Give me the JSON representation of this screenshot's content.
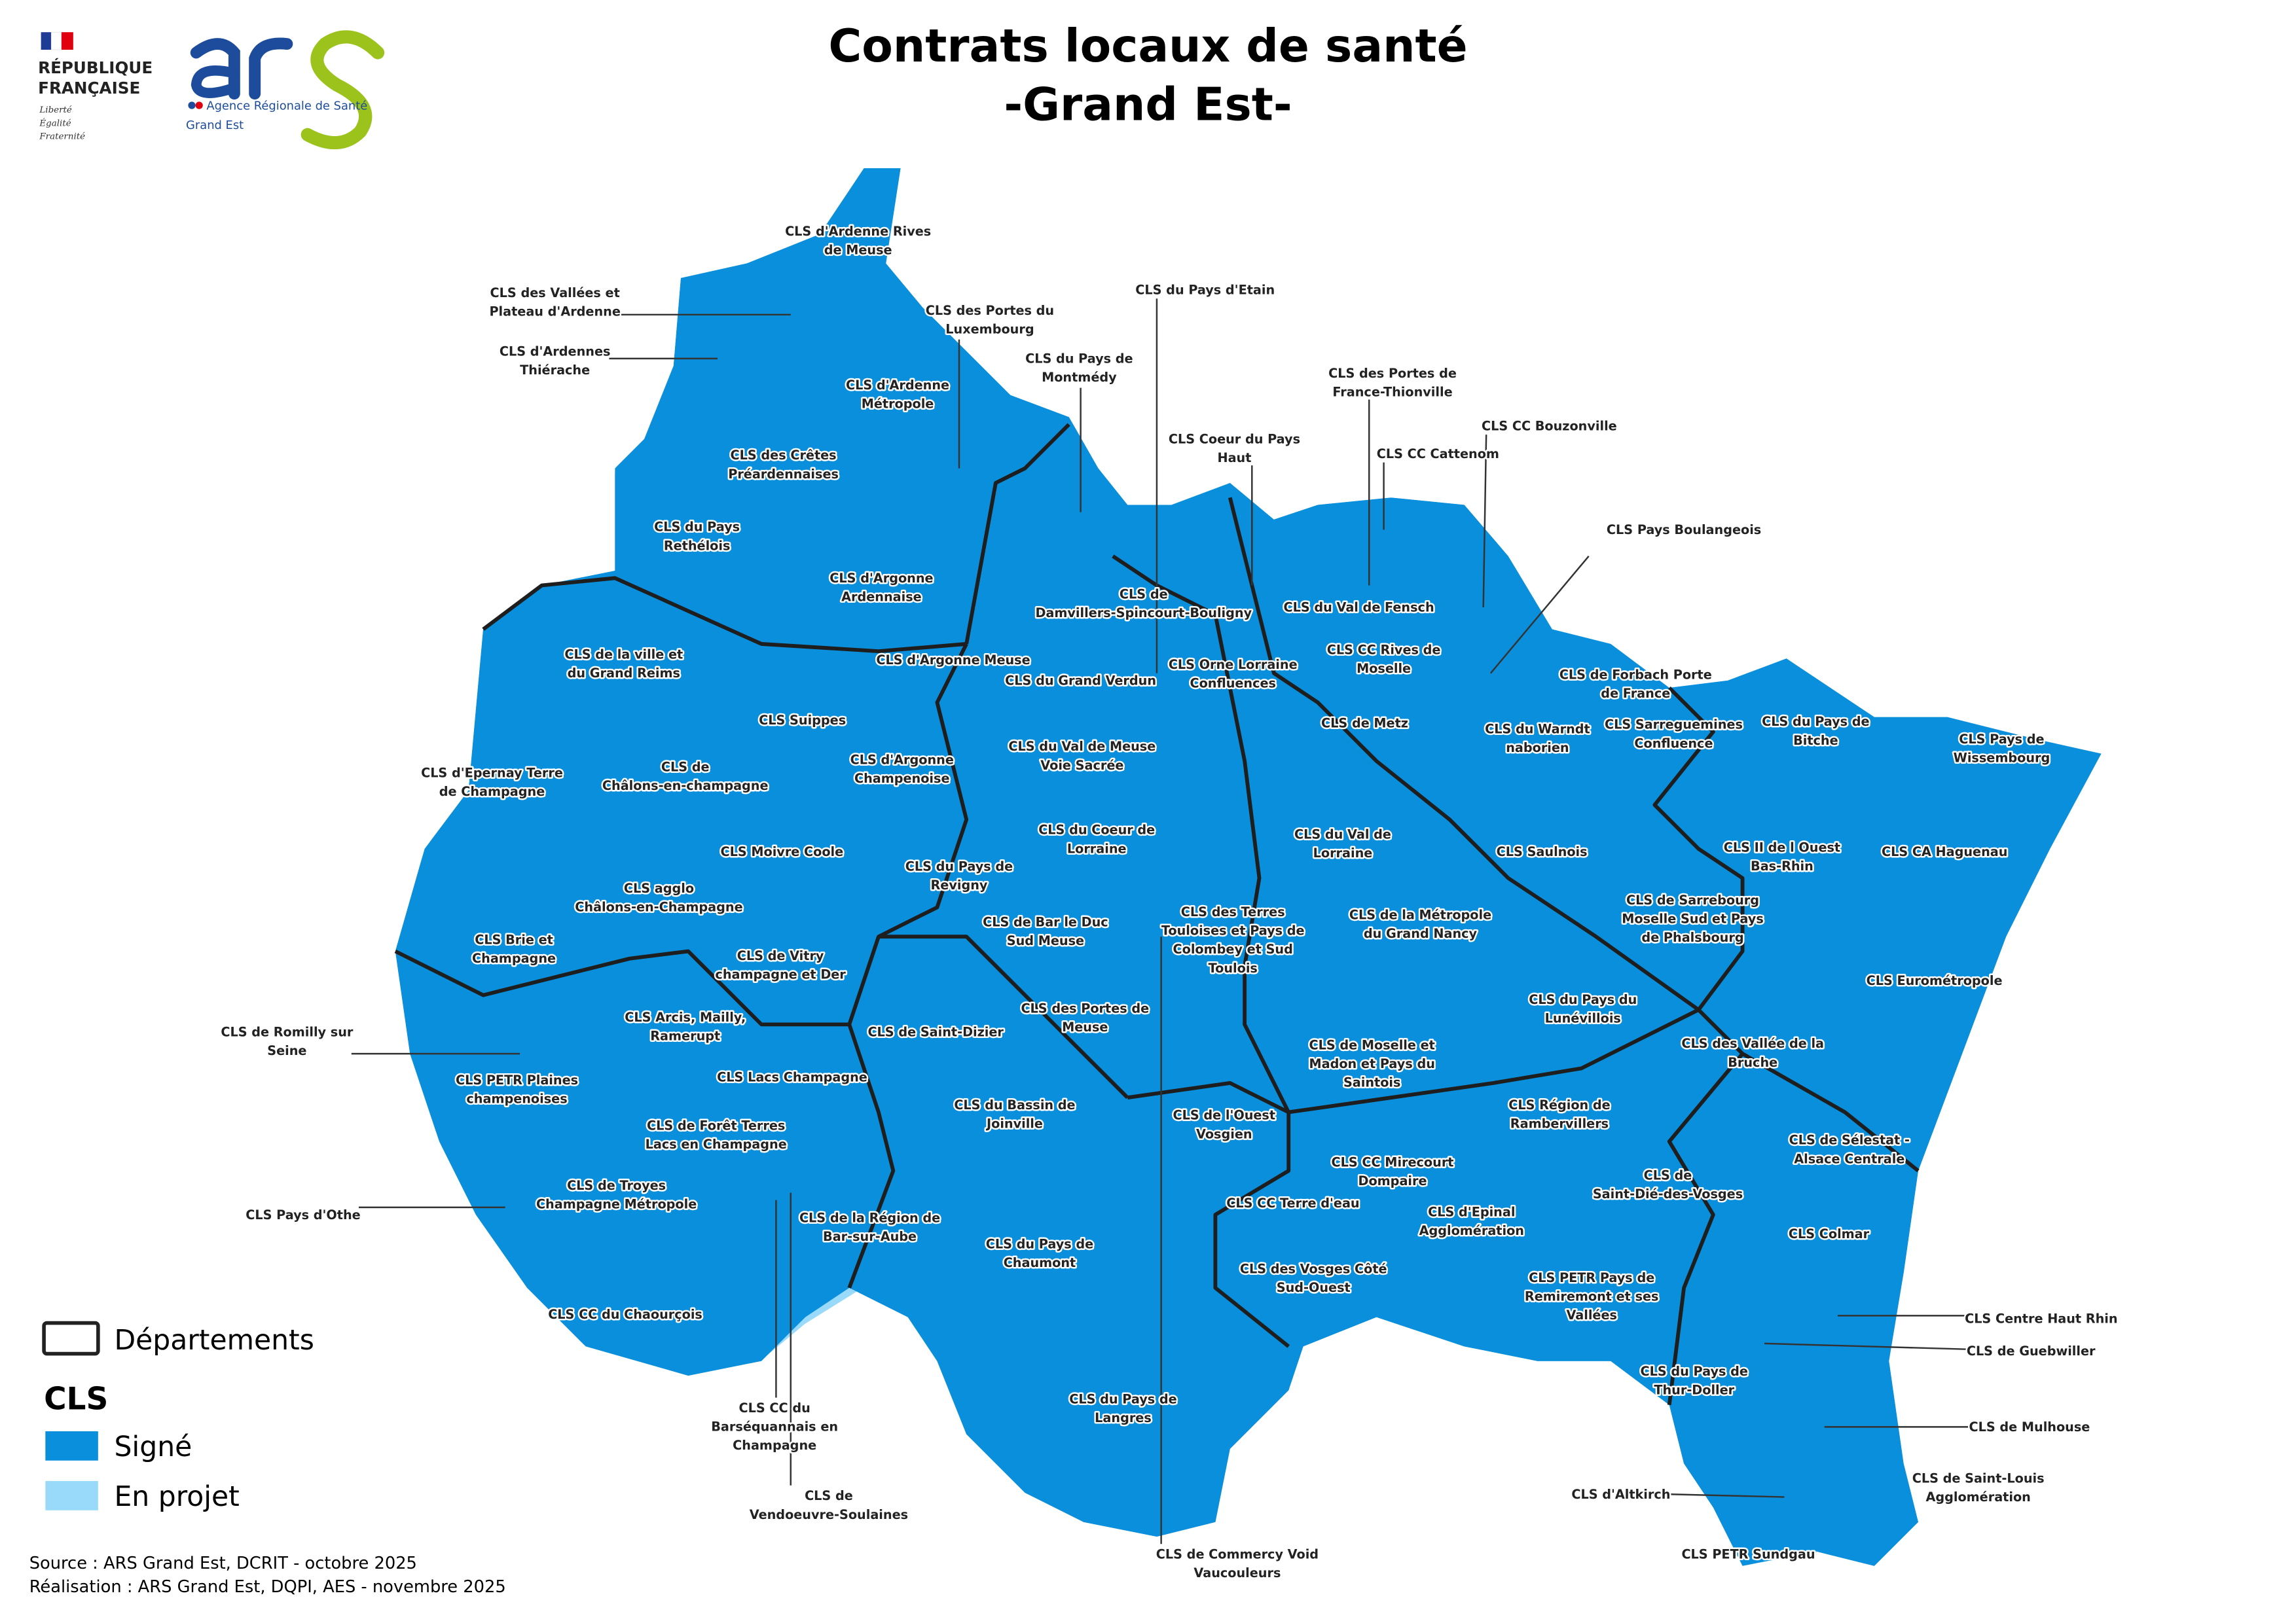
{
  "header": {
    "title_line1": "Contrats locaux de santé",
    "title_line2": "-Grand Est-",
    "logo_rf": {
      "line1": "RÉPUBLIQUE",
      "line2": "FRANÇAISE",
      "motto": [
        "Liberté",
        "Égalité",
        "Fraternité"
      ]
    },
    "logo_ars": {
      "mark": "ars",
      "line1": "Agence Régionale de Santé",
      "line2": "Grand Est"
    }
  },
  "legend": {
    "departments_label": "Départements",
    "cls_title": "CLS",
    "items": [
      {
        "label": "Signé",
        "color": "#0a8fdc"
      },
      {
        "label": "En projet",
        "color": "#99dafa"
      }
    ]
  },
  "colors": {
    "signe": "#0a8fdc",
    "en_projet": "#99dafa",
    "none": "#ffffff",
    "department_border": "#1e1e1e"
  },
  "footer": {
    "source": "Source : ARS Grand Est, DCRIT - octobre 2025",
    "realisation": "Réalisation : ARS Grand Est, DQPI, AES - novembre 2025"
  },
  "labels": [
    {
      "lines": [
        "CLS d'Ardenne Rives",
        "de Meuse"
      ]
    },
    {
      "lines": [
        "CLS des Vallées et",
        "Plateau d'Ardenne"
      ]
    },
    {
      "lines": [
        "CLS d'Ardennes",
        "Thiérache"
      ]
    },
    {
      "lines": [
        "CLS des Portes du",
        "Luxembourg"
      ]
    },
    {
      "lines": [
        "CLS du Pays de",
        "Montmédy"
      ]
    },
    {
      "lines": [
        "CLS du Pays d'Etain"
      ]
    },
    {
      "lines": [
        "CLS d'Ardenne",
        "Métropole"
      ]
    },
    {
      "lines": [
        "CLS des Crêtes",
        "Préardennaises"
      ]
    },
    {
      "lines": [
        "CLS du Pays",
        "Rethélois"
      ]
    },
    {
      "lines": [
        "CLS d'Argonne",
        "Ardennaise"
      ]
    },
    {
      "lines": [
        "CLS de la ville et",
        "du Grand Reims"
      ]
    },
    {
      "lines": [
        "CLS d'Argonne Meuse"
      ]
    },
    {
      "lines": [
        "CLS Suippes"
      ]
    },
    {
      "lines": [
        "CLS d'Argonne",
        "Champenoise"
      ]
    },
    {
      "lines": [
        "CLS d'Epernay Terre",
        "de Champagne"
      ]
    },
    {
      "lines": [
        "CLS de",
        "Châlons-en-champagne"
      ]
    },
    {
      "lines": [
        "CLS Moivre Coole"
      ]
    },
    {
      "lines": [
        "CLS agglo",
        "Châlons-en-Champagne"
      ]
    },
    {
      "lines": [
        "CLS Brie et",
        "Champagne"
      ]
    },
    {
      "lines": [
        "CLS de Vitry",
        "champagne et Der"
      ]
    },
    {
      "lines": [
        "CLS Arcis, Mailly,",
        "Ramerupt"
      ]
    },
    {
      "lines": [
        "CLS de Romilly sur",
        "Seine"
      ]
    },
    {
      "lines": [
        "CLS PETR Plaines",
        "champenoises"
      ]
    },
    {
      "lines": [
        "CLS Lacs Champagne"
      ]
    },
    {
      "lines": [
        "CLS de Forêt Terres",
        "Lacs en Champagne"
      ]
    },
    {
      "lines": [
        "CLS de Troyes",
        "Champagne Métropole"
      ]
    },
    {
      "lines": [
        "CLS Pays d'Othe"
      ]
    },
    {
      "lines": [
        "CLS de la Région de",
        "Bar-sur-Aube"
      ]
    },
    {
      "lines": [
        "CLS CC du Chaourçois"
      ]
    },
    {
      "lines": [
        "CLS CC du",
        "Barséquannais en",
        "Champagne"
      ]
    },
    {
      "lines": [
        "CLS de",
        "Vendoeuvre-Soulaines"
      ]
    },
    {
      "lines": [
        "CLS de Saint-Dizier"
      ]
    },
    {
      "lines": [
        "CLS du Bassin de",
        "Joinville"
      ]
    },
    {
      "lines": [
        "CLS du Pays de",
        "Chaumont"
      ]
    },
    {
      "lines": [
        "CLS du Pays de",
        "Langres"
      ]
    },
    {
      "lines": [
        "CLS de Commercy Void",
        "Vaucouleurs"
      ]
    },
    {
      "lines": [
        "CLS des Portes de",
        "Meuse"
      ]
    },
    {
      "lines": [
        "CLS de Bar le Duc",
        "Sud Meuse"
      ]
    },
    {
      "lines": [
        "CLS du Pays de",
        "Revigny"
      ]
    },
    {
      "lines": [
        "CLS du Coeur de",
        "Lorraine"
      ]
    },
    {
      "lines": [
        "CLS du Val de Meuse",
        "Voie Sacrée"
      ]
    },
    {
      "lines": [
        "CLS du Grand Verdun"
      ]
    },
    {
      "lines": [
        "CLS de",
        "Damvillers-Spincourt-Bouligny"
      ]
    },
    {
      "lines": [
        "CLS Coeur du Pays",
        "Haut"
      ]
    },
    {
      "lines": [
        "CLS du Val de Fensch"
      ]
    },
    {
      "lines": [
        "CLS des Portes de",
        "France-Thionville"
      ]
    },
    {
      "lines": [
        "CLS CC Cattenom"
      ]
    },
    {
      "lines": [
        "CLS CC Bouzonville"
      ]
    },
    {
      "lines": [
        "CLS Pays Boulangeois"
      ]
    },
    {
      "lines": [
        "CLS CC Rives de",
        "Moselle"
      ]
    },
    {
      "lines": [
        "CLS Orne Lorraine",
        "Confluences"
      ]
    },
    {
      "lines": [
        "CLS de Metz"
      ]
    },
    {
      "lines": [
        "CLS du Warndt",
        "naborien"
      ]
    },
    {
      "lines": [
        "CLS de Forbach Porte",
        "de France"
      ]
    },
    {
      "lines": [
        "CLS Sarreguemines",
        "Confluence"
      ]
    },
    {
      "lines": [
        "CLS du Pays de",
        "Bitche"
      ]
    },
    {
      "lines": [
        "CLS Pays de",
        "Wissembourg"
      ]
    },
    {
      "lines": [
        "CLS du Val de",
        "Lorraine"
      ]
    },
    {
      "lines": [
        "CLS Saulnois"
      ]
    },
    {
      "lines": [
        "CLS II de l Ouest",
        "Bas-Rhin"
      ]
    },
    {
      "lines": [
        "CLS CA Haguenau"
      ]
    },
    {
      "lines": [
        "CLS de Sarrebourg",
        "Moselle Sud et Pays",
        "de Phalsbourg"
      ]
    },
    {
      "lines": [
        "CLS des Terres",
        "Touloises et Pays de",
        "Colombey et Sud",
        "Toulois"
      ]
    },
    {
      "lines": [
        "CLS de la Métropole",
        "du Grand Nancy"
      ]
    },
    {
      "lines": [
        "CLS Eurométropole"
      ]
    },
    {
      "lines": [
        "CLS du Pays du",
        "Lunévillois"
      ]
    },
    {
      "lines": [
        "CLS des Vallée de la",
        "Bruche"
      ]
    },
    {
      "lines": [
        "CLS de Moselle et",
        "Madon et Pays du",
        "Saintois"
      ]
    },
    {
      "lines": [
        "CLS de l'Ouest",
        "Vosgien"
      ]
    },
    {
      "lines": [
        "CLS Région de",
        "Rambervillers"
      ]
    },
    {
      "lines": [
        "CLS de Sélestat -",
        "Alsace Centrale"
      ]
    },
    {
      "lines": [
        "CLS CC Mirecourt",
        "Dompaire"
      ]
    },
    {
      "lines": [
        "CLS de",
        "Saint-Dié-des-Vosges"
      ]
    },
    {
      "lines": [
        "CLS CC Terre d'eau"
      ]
    },
    {
      "lines": [
        "CLS d'Epinal",
        "Agglomération"
      ]
    },
    {
      "lines": [
        "CLS Colmar"
      ]
    },
    {
      "lines": [
        "CLS des Vosges Côté",
        "Sud-Ouest"
      ]
    },
    {
      "lines": [
        "CLS PETR Pays de",
        "Remiremont et ses",
        "Vallées"
      ]
    },
    {
      "lines": [
        "CLS Centre Haut Rhin"
      ]
    },
    {
      "lines": [
        "CLS de Guebwiller"
      ]
    },
    {
      "lines": [
        "CLS du Pays de",
        "Thur-Doller"
      ]
    },
    {
      "lines": [
        "CLS de Mulhouse"
      ]
    },
    {
      "lines": [
        "CLS de Saint-Louis",
        "Agglomération"
      ]
    },
    {
      "lines": [
        "CLS d'Altkirch"
      ]
    },
    {
      "lines": [
        "CLS PETR Sundgau"
      ]
    }
  ]
}
